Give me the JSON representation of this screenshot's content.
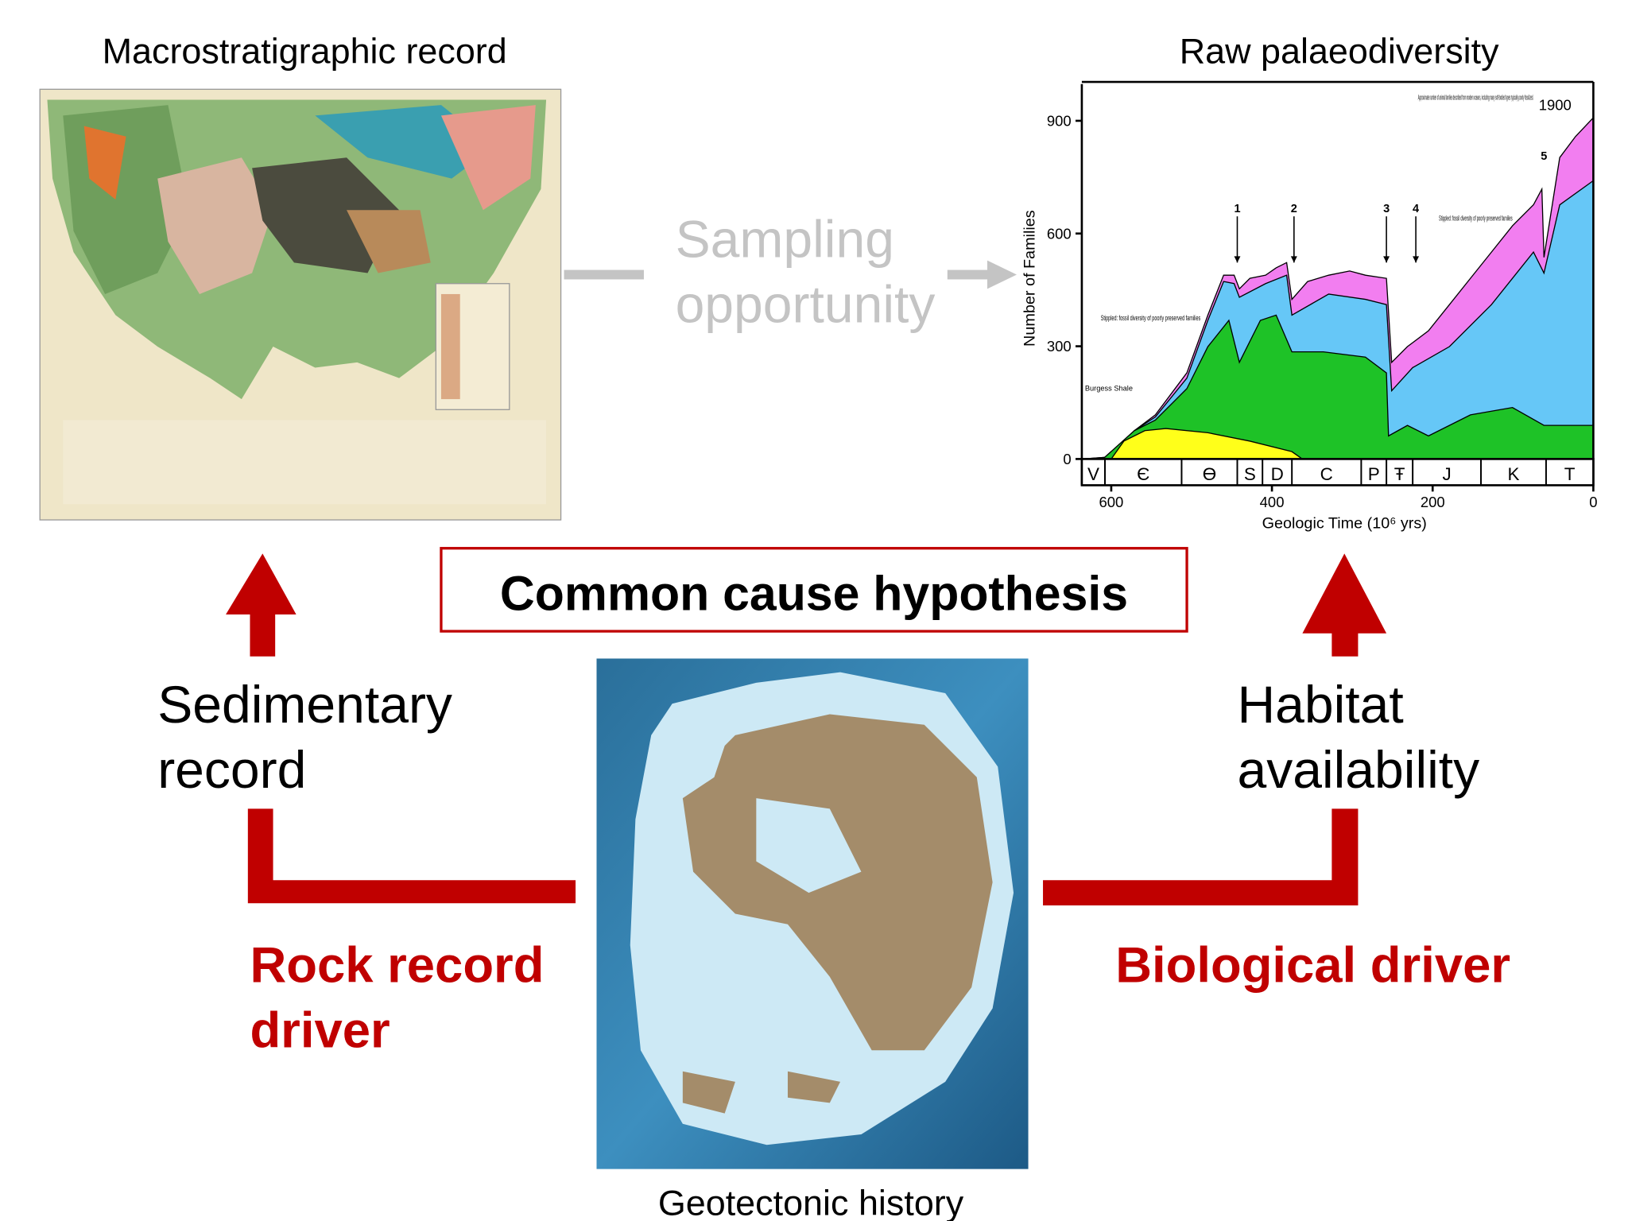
{
  "left_panel": {
    "title": "Macrostratigraphic record"
  },
  "right_panel": {
    "title": "Raw palaeodiversity",
    "chart": {
      "y_label": "Number of Families",
      "x_label": "Geologic Time (10⁶ yrs)",
      "yticks": [
        0,
        300,
        600,
        900
      ],
      "xticks": [
        600,
        400,
        200,
        0
      ],
      "periods": [
        "V",
        "Є",
        "Ɵ",
        "S",
        "D",
        "C",
        "P",
        "Ŧ",
        "J",
        "K",
        "T"
      ],
      "events": [
        "1",
        "2",
        "3",
        "4",
        "5"
      ],
      "notes": [
        "Approximate number of animal families described from modern oceans, including many soft-bodied types typically poorly fossilized.",
        "1900",
        "Stippled: fossil diversity of poorly preserved families",
        "Stippled: fossil diversity of poorly preserved families",
        "Burgess Shale"
      ]
    }
  },
  "middle": {
    "sampling": [
      "Sampling",
      "opportunity"
    ],
    "hypothesis": "Common cause hypothesis"
  },
  "left_branch": {
    "label": [
      "Sedimentary",
      "record"
    ],
    "driver": [
      "Rock record",
      "driver"
    ]
  },
  "right_branch": {
    "label": [
      "Habitat",
      "availability"
    ],
    "driver": "Biological driver"
  },
  "bottom": {
    "caption": "Geotectonic history"
  }
}
